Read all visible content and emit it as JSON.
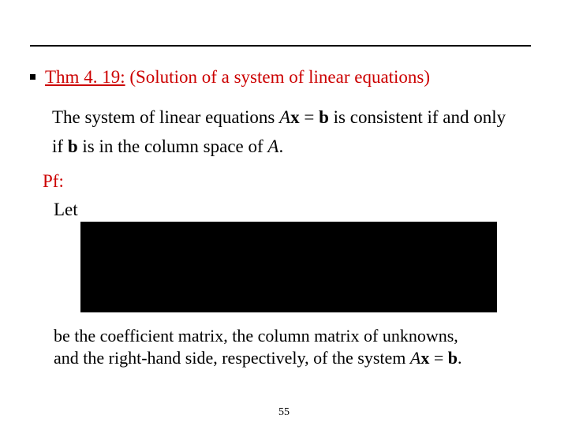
{
  "theorem": {
    "label_prefix": "Thm 4. 19:",
    "label_rest": " (Solution of a system of linear equations)"
  },
  "body": {
    "line1_pre": "The system of linear equations ",
    "A": "A",
    "x": "x",
    "equals": " = ",
    "b": "b",
    "line1_post": " is consistent if and only",
    "line2_pre": "if  ",
    "line2_mid": " is in the column space of ",
    "Adot": "A",
    "period": "."
  },
  "proof": {
    "label": "Pf:",
    "let": "Let"
  },
  "coeff": {
    "line1": "be the coefficient matrix, the column matrix of unknowns,",
    "line2_pre": "and the right-hand side, respectively, of the system ",
    "line2_post": "."
  },
  "page_number": "55",
  "colors": {
    "accent": "#cc0000",
    "text": "#000000",
    "rule": "#000000",
    "background": "#ffffff",
    "box": "#000000"
  }
}
